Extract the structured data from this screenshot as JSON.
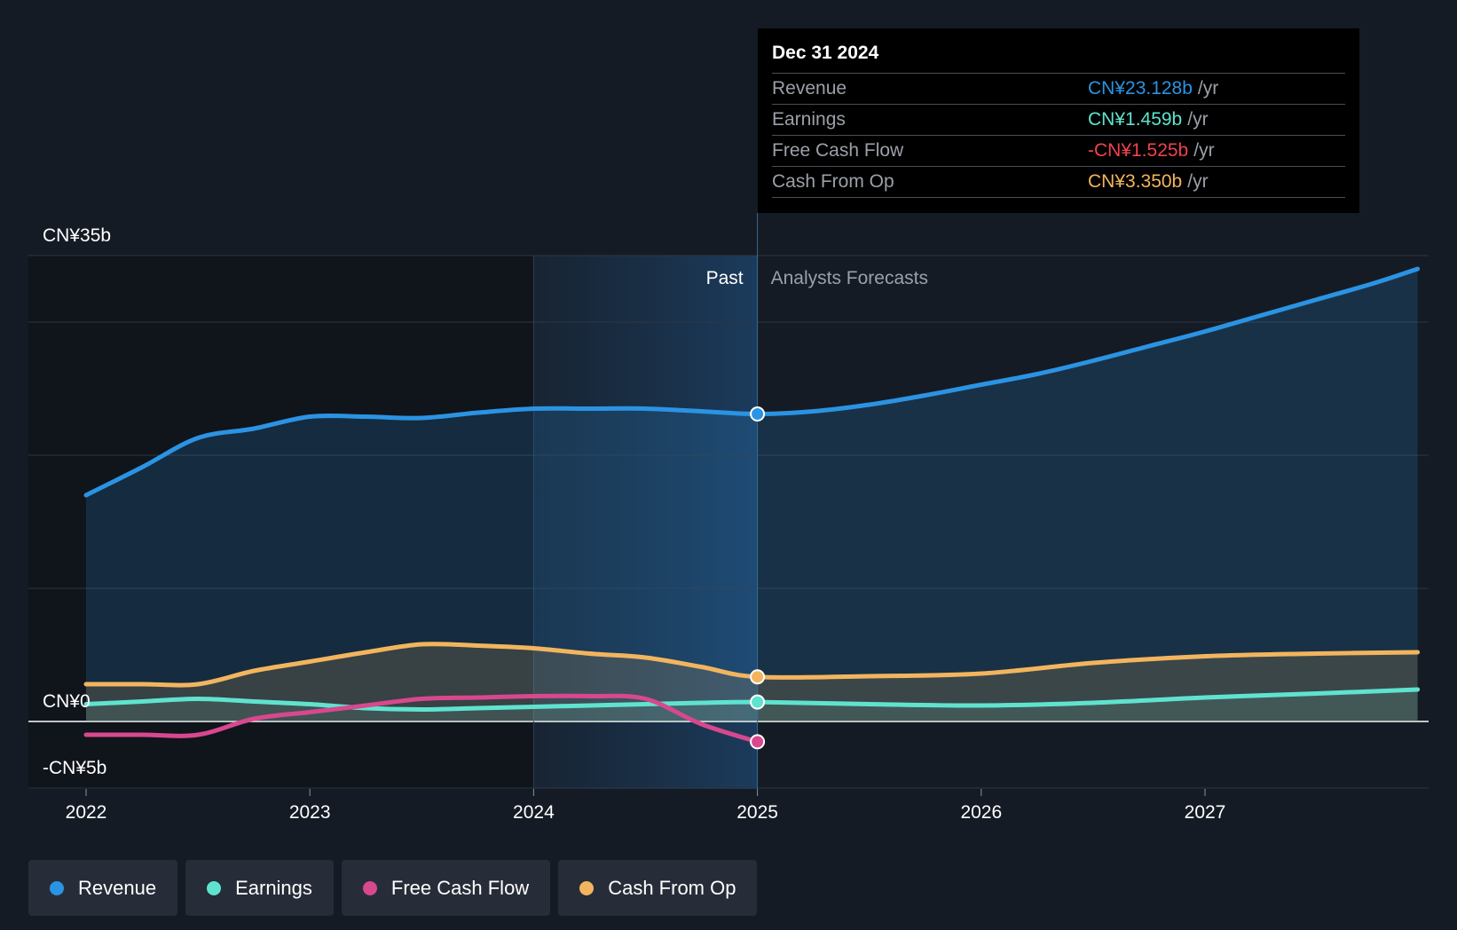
{
  "tooltip": {
    "date": "Dec 31 2024",
    "rows": [
      {
        "name": "Revenue",
        "value": "CN¥23.128b",
        "unit": "/yr",
        "color": "#2b93e3"
      },
      {
        "name": "Earnings",
        "value": "CN¥1.459b",
        "unit": "/yr",
        "color": "#5fe3cf"
      },
      {
        "name": "Free Cash Flow",
        "value": "-CN¥1.525b",
        "unit": "/yr",
        "color": "#f0424d"
      },
      {
        "name": "Cash From Op",
        "value": "CN¥3.350b",
        "unit": "/yr",
        "color": "#f2b55e"
      }
    ]
  },
  "labels": {
    "past": "Past",
    "forecast": "Analysts Forecasts"
  },
  "legend": [
    {
      "label": "Revenue",
      "color": "#2b93e3"
    },
    {
      "label": "Earnings",
      "color": "#5fe3cf"
    },
    {
      "label": "Free Cash Flow",
      "color": "#d8488e"
    },
    {
      "label": "Cash From Op",
      "color": "#f2b55e"
    }
  ],
  "chart_data": {
    "type": "line",
    "title": "",
    "xlabel": "",
    "ylabel": "",
    "ylim": [
      -5,
      35
    ],
    "xlim": [
      2021.75,
      2027.95
    ],
    "y_tick_labels": [
      {
        "value": 35,
        "label": "CN¥35b"
      },
      {
        "value": 0,
        "label": "CN¥0"
      },
      {
        "value": -5,
        "label": "-CN¥5b"
      }
    ],
    "gridlines": [
      35,
      30,
      20,
      10,
      0,
      -5
    ],
    "x_ticks": [
      2022,
      2023,
      2024,
      2025,
      2026,
      2027
    ],
    "x_tick_labels": [
      "2022",
      "2023",
      "2024",
      "2025",
      "2026",
      "2027"
    ],
    "past_shade_start": 2024.0,
    "divider_x": 2025.0,
    "series": [
      {
        "name": "Revenue",
        "color": "#2b93e3",
        "x": [
          2022.0,
          2022.25,
          2022.5,
          2022.75,
          2023.0,
          2023.25,
          2023.5,
          2023.75,
          2024.0,
          2024.25,
          2024.5,
          2024.75,
          2025.0,
          2025.25,
          2025.5,
          2025.75,
          2026.0,
          2026.25,
          2026.5,
          2026.75,
          2027.0,
          2027.25,
          2027.5,
          2027.75,
          2027.95
        ],
        "y": [
          17.0,
          19.1,
          21.3,
          22.0,
          22.9,
          22.9,
          22.8,
          23.2,
          23.5,
          23.5,
          23.5,
          23.3,
          23.1,
          23.3,
          23.8,
          24.5,
          25.3,
          26.1,
          27.1,
          28.2,
          29.3,
          30.5,
          31.7,
          32.9,
          34.0
        ]
      },
      {
        "name": "Earnings",
        "color": "#5fe3cf",
        "x": [
          2022.0,
          2022.25,
          2022.5,
          2022.75,
          2023.0,
          2023.25,
          2023.5,
          2023.75,
          2024.0,
          2024.25,
          2024.5,
          2024.75,
          2025.0,
          2025.5,
          2026.0,
          2026.5,
          2027.0,
          2027.5,
          2027.95
        ],
        "y": [
          1.3,
          1.5,
          1.7,
          1.5,
          1.3,
          1.0,
          0.9,
          1.0,
          1.1,
          1.2,
          1.3,
          1.4,
          1.46,
          1.3,
          1.2,
          1.4,
          1.8,
          2.1,
          2.4
        ]
      },
      {
        "name": "Free Cash Flow",
        "color": "#d8488e",
        "x": [
          2022.0,
          2022.25,
          2022.5,
          2022.75,
          2023.0,
          2023.25,
          2023.5,
          2023.75,
          2024.0,
          2024.25,
          2024.5,
          2024.75,
          2025.0
        ],
        "y": [
          -1.0,
          -1.0,
          -1.0,
          0.2,
          0.7,
          1.2,
          1.7,
          1.8,
          1.9,
          1.9,
          1.7,
          -0.2,
          -1.525
        ]
      },
      {
        "name": "Cash From Op",
        "color": "#f2b55e",
        "x": [
          2022.0,
          2022.25,
          2022.5,
          2022.75,
          2023.0,
          2023.25,
          2023.5,
          2023.75,
          2024.0,
          2024.25,
          2024.5,
          2024.75,
          2025.0,
          2025.5,
          2026.0,
          2026.5,
          2027.0,
          2027.5,
          2027.95
        ],
        "y": [
          2.8,
          2.8,
          2.8,
          3.8,
          4.5,
          5.2,
          5.8,
          5.7,
          5.5,
          5.1,
          4.8,
          4.1,
          3.35,
          3.4,
          3.6,
          4.4,
          4.9,
          5.1,
          5.2
        ]
      }
    ]
  }
}
